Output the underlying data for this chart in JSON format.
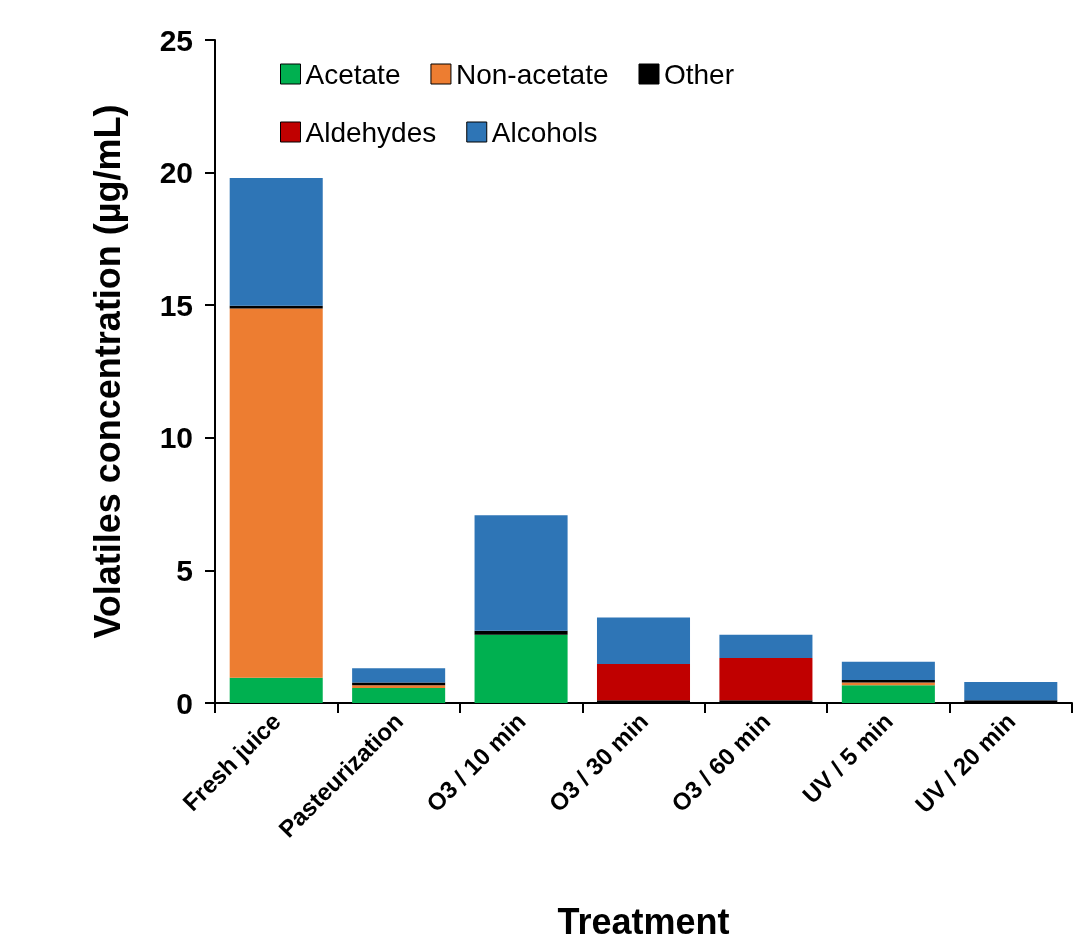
{
  "chart_data": {
    "type": "bar",
    "stacked": true,
    "xlabel": "Treatment",
    "ylabel": "Volatiles concentration (µg/mL)",
    "categories": [
      "Fresh juice",
      "Pasteurization",
      "O3 / 10 min",
      "O3 / 30 min",
      "O3 / 60 min",
      "UV / 5 min",
      "UV / 20 min"
    ],
    "series": [
      {
        "name": "Acetate",
        "color": "#00b050",
        "values": [
          0.95,
          0.57,
          2.57,
          0,
          0,
          0.67,
          0
        ]
      },
      {
        "name": "Non-acetate",
        "color": "#ed7d31",
        "values": [
          13.93,
          0.1,
          0,
          0,
          0,
          0.1,
          0
        ]
      },
      {
        "name": "Other",
        "color": "#000000",
        "values": [
          0.1,
          0.1,
          0.15,
          0.1,
          0.1,
          0.1,
          0.1
        ]
      },
      {
        "name": "Aldehydes",
        "color": "#c00000",
        "values": [
          0,
          0,
          0,
          1.37,
          1.6,
          0,
          0
        ]
      },
      {
        "name": "Alcohols",
        "color": "#2e75b6",
        "values": [
          4.82,
          0.54,
          4.36,
          1.75,
          0.87,
          0.69,
          0.69
        ]
      }
    ],
    "ylim": [
      0,
      25
    ],
    "yticks": [
      0,
      5,
      10,
      15,
      20,
      25
    ],
    "grid": false,
    "legend": "top"
  }
}
